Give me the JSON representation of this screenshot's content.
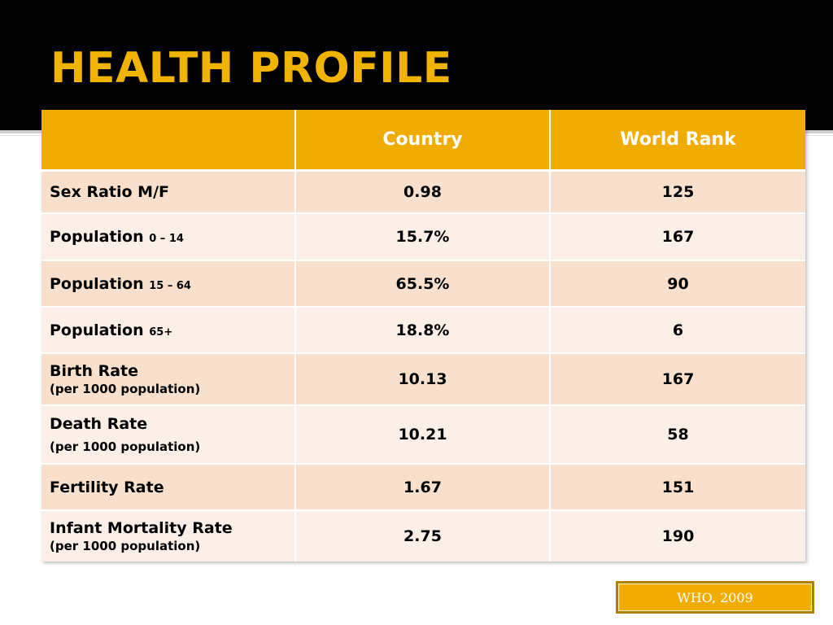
{
  "slide": {
    "title": "HEALTH PROFILE",
    "source": "WHO, 2009"
  },
  "table": {
    "headers": [
      "",
      "Country",
      "World Rank"
    ],
    "rows": [
      {
        "label": "Sex Ratio M/F",
        "label_small": "",
        "sub": "",
        "country": "0.98",
        "rank": "125"
      },
      {
        "label": "Population ",
        "label_small": "0 – 14",
        "sub": "",
        "country": "15.7%",
        "rank": "167"
      },
      {
        "label": "Population ",
        "label_small": "15 – 64",
        "sub": "",
        "country": "65.5%",
        "rank": "90"
      },
      {
        "label": "Population ",
        "label_small": "65+",
        "sub": "",
        "country": "18.8%",
        "rank": "6"
      },
      {
        "label": "Birth Rate",
        "label_small": "",
        "sub": "(per 1000 population)",
        "country": "10.13",
        "rank": "167"
      },
      {
        "label": "Death Rate",
        "label_small": "",
        "sub": "(per 1000 population)",
        "country": "10.21",
        "rank": "58"
      },
      {
        "label": "Fertility Rate",
        "label_small": "",
        "sub": "",
        "country": "1.67",
        "rank": "151"
      },
      {
        "label": "Infant Mortality Rate",
        "label_small": "",
        "sub": "(per 1000 population)",
        "country": "2.75",
        "rank": "190"
      }
    ]
  },
  "colors": {
    "title": "#f0b400",
    "header_bg": "#f0ac00",
    "row_odd": "#f9e0cc",
    "row_even": "#fcefe8",
    "top_bar": "#000000"
  }
}
